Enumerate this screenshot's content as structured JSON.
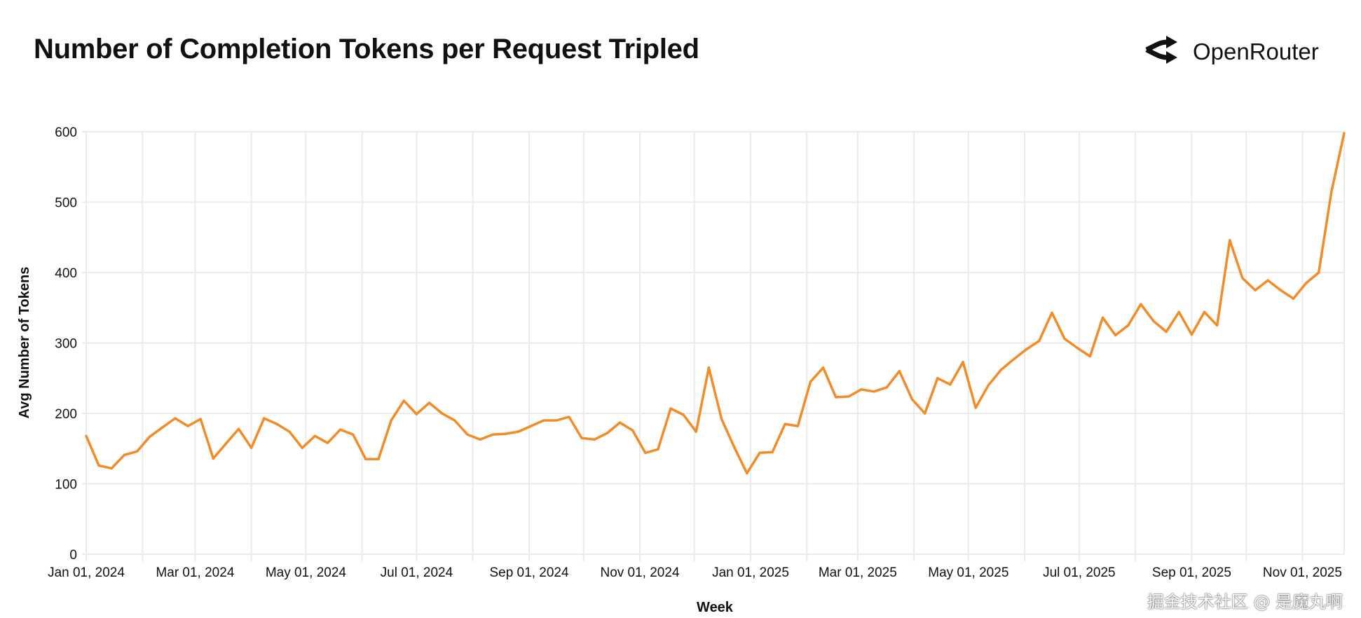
{
  "header": {
    "title": "Number of Completion Tokens per Request Tripled",
    "brand": "OpenRouter",
    "brand_icon": "openrouter-arrows-icon"
  },
  "watermark": "掘金技术社区 @ 是魔丸啊",
  "colors": {
    "line": "#F28C28",
    "grid": "#EBEBEE",
    "text": "#111111"
  },
  "chart_data": {
    "type": "line",
    "title": "Number of Completion Tokens per Request Tripled",
    "xlabel": "Week",
    "ylabel": "Avg Number of Tokens",
    "ylim": [
      0,
      600
    ],
    "yticks": [
      "0",
      "100",
      "200",
      "300",
      "400",
      "500",
      "600"
    ],
    "xticks": [
      "Jan 01, 2024",
      "Mar 01, 2024",
      "May 01, 2024",
      "Jul 01, 2024",
      "Sep 01, 2024",
      "Nov 01, 2024",
      "Jan 01, 2025",
      "Mar 01, 2025",
      "May 01, 2025",
      "Jul 01, 2025",
      "Sep 01, 2025",
      "Nov 01, 2025"
    ],
    "xtick_dates": [
      "2024-01-01",
      "2024-03-01",
      "2024-05-01",
      "2024-07-01",
      "2024-09-01",
      "2024-11-01",
      "2025-01-01",
      "2025-03-01",
      "2025-05-01",
      "2025-07-01",
      "2025-09-01",
      "2025-11-01"
    ],
    "grid": true,
    "x_start": "2024-01-01",
    "x_step_days": 7,
    "series": [
      {
        "name": "Avg Number of Tokens",
        "values": [
          168,
          126,
          122,
          141,
          146,
          167,
          180,
          193,
          182,
          192,
          136,
          157,
          178,
          151,
          193,
          185,
          174,
          151,
          168,
          158,
          177,
          170,
          135,
          135,
          190,
          218,
          199,
          215,
          200,
          190,
          170,
          163,
          170,
          171,
          174,
          182,
          190,
          190,
          195,
          165,
          163,
          172,
          187,
          176,
          144,
          149,
          207,
          198,
          174,
          265,
          192,
          152,
          115,
          144,
          145,
          185,
          182,
          245,
          265,
          223,
          224,
          234,
          231,
          237,
          260,
          220,
          200,
          250,
          241,
          273,
          208,
          240,
          262,
          277,
          291,
          303,
          343,
          306,
          293,
          281,
          336,
          311,
          325,
          355,
          331,
          316,
          344,
          312,
          344,
          325,
          446,
          392,
          375,
          389,
          375,
          363,
          385,
          400,
          515,
          598
        ]
      }
    ]
  }
}
